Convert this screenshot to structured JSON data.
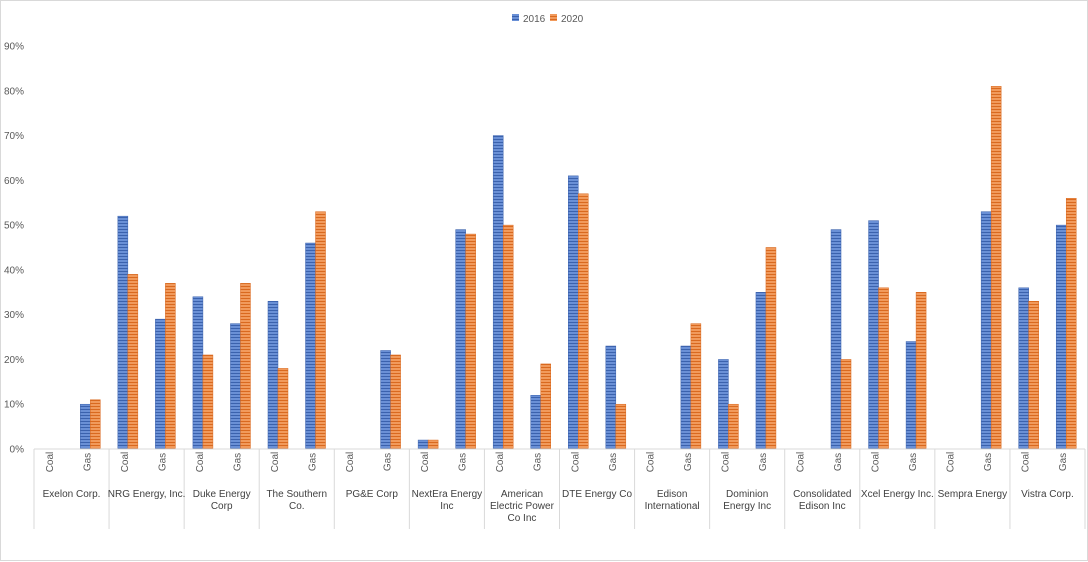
{
  "chart_data": {
    "type": "bar",
    "title": "",
    "xlabel": "",
    "ylabel": "",
    "ylim": [
      0,
      0.9
    ],
    "yticks": [
      "0%",
      "10%",
      "20%",
      "30%",
      "40%",
      "50%",
      "60%",
      "70%",
      "80%",
      "90%"
    ],
    "legend_position": "top-center",
    "colors": {
      "2016": "#4472c4",
      "2020": "#ed7d31"
    },
    "series_names": [
      "2016",
      "2020"
    ],
    "groups": [
      {
        "company": "Exelon Corp.",
        "lines": [
          "Exelon Corp."
        ],
        "items": [
          {
            "fuel": "Coal",
            "values": [
              null,
              null
            ]
          },
          {
            "fuel": "Gas",
            "values": [
              0.1,
              0.11
            ]
          }
        ]
      },
      {
        "company": "NRG Energy, Inc.",
        "lines": [
          "NRG Energy, Inc."
        ],
        "items": [
          {
            "fuel": "Coal",
            "values": [
              0.52,
              0.39
            ]
          },
          {
            "fuel": "Gas",
            "values": [
              0.29,
              0.37
            ]
          }
        ]
      },
      {
        "company": "Duke Energy Corp",
        "lines": [
          "Duke Energy",
          "Corp"
        ],
        "items": [
          {
            "fuel": "Coal",
            "values": [
              0.34,
              0.21
            ]
          },
          {
            "fuel": "Gas",
            "values": [
              0.28,
              0.37
            ]
          }
        ]
      },
      {
        "company": "The Southern Co.",
        "lines": [
          "The Southern",
          "Co."
        ],
        "items": [
          {
            "fuel": "Coal",
            "values": [
              0.33,
              0.18
            ]
          },
          {
            "fuel": "Gas",
            "values": [
              0.46,
              0.53
            ]
          }
        ]
      },
      {
        "company": "PG&E Corp",
        "lines": [
          "PG&E Corp"
        ],
        "items": [
          {
            "fuel": "Coal",
            "values": [
              null,
              null
            ]
          },
          {
            "fuel": "Gas",
            "values": [
              0.22,
              0.21
            ]
          }
        ]
      },
      {
        "company": "NextEra Energy Inc",
        "lines": [
          "NextEra Energy",
          "Inc"
        ],
        "items": [
          {
            "fuel": "Coal",
            "values": [
              0.02,
              0.02
            ]
          },
          {
            "fuel": "Gas",
            "values": [
              0.49,
              0.48
            ]
          }
        ]
      },
      {
        "company": "American Electric Power Co Inc",
        "lines": [
          "American",
          "Electric Power",
          "Co Inc"
        ],
        "items": [
          {
            "fuel": "Coal",
            "values": [
              0.7,
              0.5
            ]
          },
          {
            "fuel": "Gas",
            "values": [
              0.12,
              0.19
            ]
          }
        ]
      },
      {
        "company": "DTE Energy Co",
        "lines": [
          "DTE Energy Co"
        ],
        "items": [
          {
            "fuel": "Coal",
            "values": [
              0.61,
              0.57
            ]
          },
          {
            "fuel": "Gas",
            "values": [
              0.23,
              0.1
            ]
          }
        ]
      },
      {
        "company": "Edison International",
        "lines": [
          "Edison",
          "International"
        ],
        "items": [
          {
            "fuel": "Coal",
            "values": [
              null,
              null
            ]
          },
          {
            "fuel": "Gas",
            "values": [
              0.23,
              0.28
            ]
          }
        ]
      },
      {
        "company": "Dominion Energy Inc",
        "lines": [
          "Dominion",
          "Energy Inc"
        ],
        "items": [
          {
            "fuel": "Coal",
            "values": [
              0.2,
              0.1
            ]
          },
          {
            "fuel": "Gas",
            "values": [
              0.35,
              0.45
            ]
          }
        ]
      },
      {
        "company": "Consolidated Edison Inc",
        "lines": [
          "Consolidated",
          "Edison Inc"
        ],
        "items": [
          {
            "fuel": "Coal",
            "values": [
              null,
              null
            ]
          },
          {
            "fuel": "Gas",
            "values": [
              0.49,
              0.2
            ]
          }
        ]
      },
      {
        "company": "Xcel Energy Inc.",
        "lines": [
          "Xcel Energy Inc."
        ],
        "items": [
          {
            "fuel": "Coal",
            "values": [
              0.51,
              0.36
            ]
          },
          {
            "fuel": "Gas",
            "values": [
              0.24,
              0.35
            ]
          }
        ]
      },
      {
        "company": "Sempra Energy",
        "lines": [
          "Sempra Energy"
        ],
        "items": [
          {
            "fuel": "Coal",
            "values": [
              null,
              null
            ]
          },
          {
            "fuel": "Gas",
            "values": [
              0.53,
              0.81
            ]
          }
        ]
      },
      {
        "company": "Vistra Corp.",
        "lines": [
          "Vistra Corp."
        ],
        "items": [
          {
            "fuel": "Coal",
            "values": [
              0.36,
              0.33
            ]
          },
          {
            "fuel": "Gas",
            "values": [
              0.5,
              0.56
            ]
          }
        ]
      }
    ]
  }
}
